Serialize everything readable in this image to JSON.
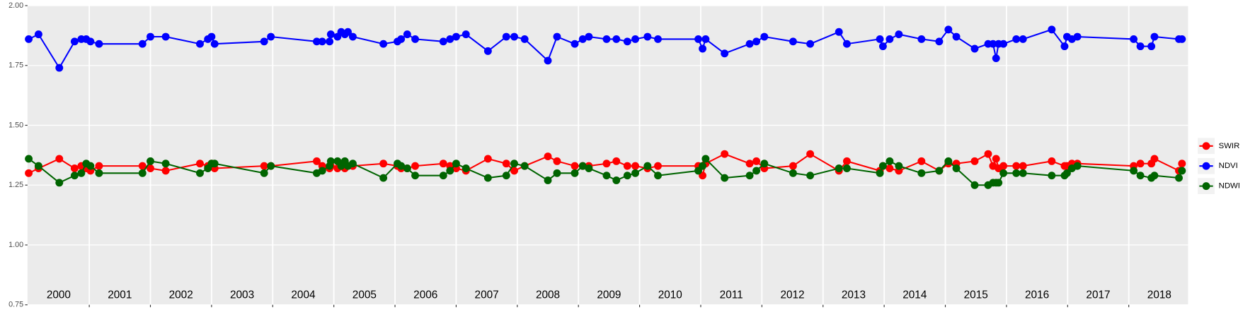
{
  "chart_data": {
    "type": "line",
    "x": [
      2000.01,
      2000.17,
      2000.51,
      2000.76,
      2000.87,
      2000.95,
      2001.02,
      2001.16,
      2001.87,
      2002.0,
      2002.25,
      2002.81,
      2002.94,
      2003.0,
      2003.05,
      2003.86,
      2003.97,
      2004.72,
      2004.81,
      2004.93,
      2004.95,
      2005.06,
      2005.12,
      2005.18,
      2005.23,
      2005.31,
      2005.81,
      2006.04,
      2006.1,
      2006.2,
      2006.33,
      2006.79,
      2006.9,
      2007.0,
      2007.16,
      2007.52,
      2007.82,
      2007.95,
      2008.12,
      2008.5,
      2008.65,
      2008.94,
      2009.07,
      2009.17,
      2009.46,
      2009.62,
      2009.8,
      2009.93,
      2010.13,
      2010.3,
      2010.96,
      2011.03,
      2011.08,
      2011.39,
      2011.8,
      2011.91,
      2012.04,
      2012.51,
      2012.79,
      2013.26,
      2013.39,
      2013.93,
      2013.98,
      2014.09,
      2014.24,
      2014.61,
      2014.9,
      2015.05,
      2015.18,
      2015.48,
      2015.7,
      2015.78,
      2015.83,
      2015.87,
      2015.95,
      2016.16,
      2016.27,
      2016.74,
      2016.95,
      2016.99,
      2017.07,
      2017.16,
      2018.08,
      2018.19,
      2018.37,
      2018.42,
      2018.82,
      2018.87
    ],
    "series": [
      {
        "name": "SWIR",
        "color": "#ff0000",
        "values": [
          1.3,
          1.32,
          1.36,
          1.32,
          1.33,
          1.32,
          1.31,
          1.33,
          1.33,
          1.32,
          1.31,
          1.34,
          1.33,
          1.34,
          1.32,
          1.33,
          1.33,
          1.35,
          1.33,
          1.32,
          1.33,
          1.32,
          1.33,
          1.32,
          1.33,
          1.33,
          1.34,
          1.33,
          1.32,
          1.32,
          1.33,
          1.34,
          1.33,
          1.32,
          1.31,
          1.36,
          1.34,
          1.31,
          1.33,
          1.37,
          1.35,
          1.33,
          1.33,
          1.33,
          1.34,
          1.35,
          1.33,
          1.33,
          1.32,
          1.33,
          1.33,
          1.29,
          1.34,
          1.38,
          1.34,
          1.35,
          1.32,
          1.33,
          1.38,
          1.31,
          1.35,
          1.31,
          1.33,
          1.32,
          1.31,
          1.35,
          1.31,
          1.34,
          1.34,
          1.35,
          1.38,
          1.33,
          1.36,
          1.32,
          1.33,
          1.33,
          1.33,
          1.35,
          1.33,
          1.33,
          1.34,
          1.34,
          1.33,
          1.34,
          1.34,
          1.36,
          1.31,
          1.34
        ]
      },
      {
        "name": "NDVI",
        "color": "#0000ff",
        "values": [
          1.86,
          1.88,
          1.74,
          1.85,
          1.86,
          1.86,
          1.85,
          1.84,
          1.84,
          1.87,
          1.87,
          1.84,
          1.86,
          1.87,
          1.84,
          1.85,
          1.87,
          1.85,
          1.85,
          1.85,
          1.88,
          1.87,
          1.89,
          1.88,
          1.89,
          1.87,
          1.84,
          1.85,
          1.86,
          1.88,
          1.86,
          1.85,
          1.86,
          1.87,
          1.88,
          1.81,
          1.87,
          1.87,
          1.86,
          1.77,
          1.87,
          1.84,
          1.86,
          1.87,
          1.86,
          1.86,
          1.85,
          1.86,
          1.87,
          1.86,
          1.86,
          1.82,
          1.86,
          1.8,
          1.84,
          1.85,
          1.87,
          1.85,
          1.84,
          1.89,
          1.84,
          1.86,
          1.83,
          1.86,
          1.88,
          1.86,
          1.85,
          1.9,
          1.87,
          1.82,
          1.84,
          1.84,
          1.78,
          1.84,
          1.84,
          1.86,
          1.86,
          1.9,
          1.83,
          1.87,
          1.86,
          1.87,
          1.86,
          1.83,
          1.83,
          1.87,
          1.86,
          1.86
        ]
      },
      {
        "name": "NDWI",
        "color": "#006400",
        "values": [
          1.36,
          1.33,
          1.26,
          1.29,
          1.3,
          1.34,
          1.33,
          1.3,
          1.3,
          1.35,
          1.34,
          1.3,
          1.32,
          1.34,
          1.34,
          1.3,
          1.33,
          1.3,
          1.31,
          1.33,
          1.35,
          1.35,
          1.33,
          1.35,
          1.33,
          1.34,
          1.28,
          1.34,
          1.33,
          1.32,
          1.29,
          1.29,
          1.31,
          1.34,
          1.32,
          1.28,
          1.29,
          1.34,
          1.33,
          1.27,
          1.3,
          1.3,
          1.33,
          1.32,
          1.29,
          1.27,
          1.29,
          1.3,
          1.33,
          1.29,
          1.31,
          1.33,
          1.36,
          1.28,
          1.29,
          1.31,
          1.34,
          1.3,
          1.29,
          1.32,
          1.32,
          1.3,
          1.33,
          1.35,
          1.33,
          1.3,
          1.31,
          1.35,
          1.32,
          1.25,
          1.25,
          1.26,
          1.26,
          1.26,
          1.3,
          1.3,
          1.3,
          1.29,
          1.29,
          1.3,
          1.32,
          1.33,
          1.31,
          1.29,
          1.28,
          1.29,
          1.28,
          1.31
        ]
      }
    ],
    "xlim": [
      1999.99,
      2018.97
    ],
    "xticks": [
      2001,
      2002,
      2003,
      2004,
      2005,
      2006,
      2007,
      2008,
      2009,
      2010,
      2011,
      2012,
      2013,
      2014,
      2015,
      2016,
      2017,
      2018
    ],
    "ylim": [
      0.75,
      2.0
    ],
    "yticks": [
      {
        "value": 0.75,
        "label": "0.75"
      },
      {
        "value": 1.0,
        "label": "1.00"
      },
      {
        "value": 1.25,
        "label": "1.25"
      },
      {
        "value": 1.5,
        "label": "1.50"
      },
      {
        "value": 1.75,
        "label": "1.75"
      },
      {
        "value": 2.0,
        "label": "2.00"
      }
    ],
    "grid": true,
    "legend": "right",
    "annotations": [
      {
        "text": "2000",
        "x": 2000.5,
        "y": 0.79
      },
      {
        "text": "2001",
        "x": 2001.5,
        "y": 0.79
      },
      {
        "text": "2002",
        "x": 2002.5,
        "y": 0.79
      },
      {
        "text": "2003",
        "x": 2003.5,
        "y": 0.79
      },
      {
        "text": "2004",
        "x": 2004.5,
        "y": 0.79
      },
      {
        "text": "2005",
        "x": 2005.5,
        "y": 0.79
      },
      {
        "text": "2006",
        "x": 2006.5,
        "y": 0.79
      },
      {
        "text": "2007",
        "x": 2007.5,
        "y": 0.79
      },
      {
        "text": "2008",
        "x": 2008.5,
        "y": 0.79
      },
      {
        "text": "2009",
        "x": 2009.5,
        "y": 0.79
      },
      {
        "text": "2010",
        "x": 2010.5,
        "y": 0.79
      },
      {
        "text": "2011",
        "x": 2011.5,
        "y": 0.79
      },
      {
        "text": "2012",
        "x": 2012.5,
        "y": 0.79
      },
      {
        "text": "2013",
        "x": 2013.5,
        "y": 0.79
      },
      {
        "text": "2014",
        "x": 2014.5,
        "y": 0.79
      },
      {
        "text": "2015",
        "x": 2015.5,
        "y": 0.79
      },
      {
        "text": "2016",
        "x": 2016.5,
        "y": 0.79
      },
      {
        "text": "2017",
        "x": 2017.5,
        "y": 0.79
      },
      {
        "text": "2018",
        "x": 2018.5,
        "y": 0.79
      }
    ]
  }
}
